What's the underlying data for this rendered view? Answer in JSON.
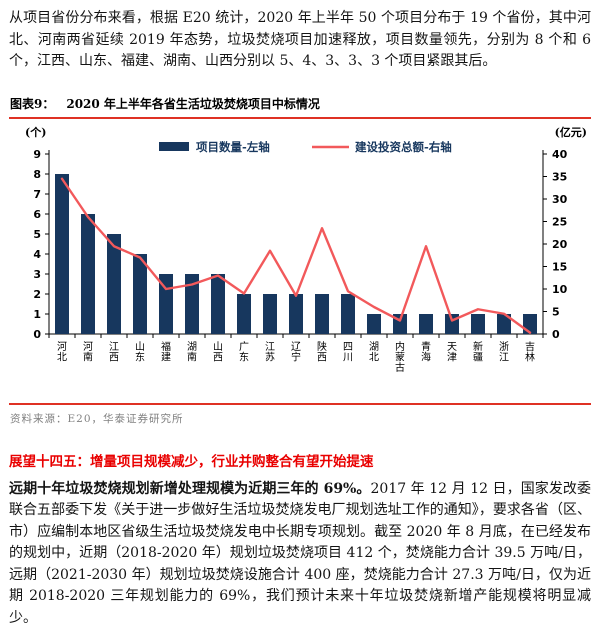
{
  "intro": {
    "text": "从项目省份分布来看，根据 E20 统计，2020 年上半年 50 个项目分布于 19 个省份，其中河北、河南两省延续 2019 年态势，垃圾焚烧项目加速释放，项目数量领先，分别为 8 个和 6 个，江西、山东、福建、湖南、山西分别以 5、4、3、3、3 个项目紧跟其后。"
  },
  "figure": {
    "label": "图表9：",
    "title": "2020 年上半年各省生活垃圾焚烧项目中标情况",
    "source": "资料来源：E20，华泰证券研究所"
  },
  "chart_data": {
    "type": "bar+line",
    "categories": [
      "河北",
      "河南",
      "江西",
      "山东",
      "福建",
      "湖南",
      "山西",
      "广东",
      "江苏",
      "辽宁",
      "陕西",
      "四川",
      "湖北",
      "内蒙古",
      "青海",
      "天津",
      "新疆",
      "浙江",
      "吉林"
    ],
    "series": [
      {
        "name": "项目数量-左轴",
        "type": "bar",
        "axis": "left",
        "color": "#17375E",
        "values": [
          8,
          6,
          5,
          4,
          3,
          3,
          3,
          2,
          2,
          2,
          2,
          2,
          1,
          1,
          1,
          1,
          1,
          1,
          1
        ]
      },
      {
        "name": "建设投资总额-右轴",
        "type": "line",
        "axis": "right",
        "color": "#F2595B",
        "values": [
          34.5,
          26,
          19.5,
          17,
          10,
          11,
          13,
          9,
          18.5,
          8.5,
          23.5,
          9.5,
          6,
          3,
          19.5,
          3,
          5.5,
          4.5,
          0.3
        ]
      }
    ],
    "left_axis": {
      "label": "(个)",
      "min": 0,
      "max": 9,
      "step": 1
    },
    "right_axis": {
      "label": "(亿元)",
      "min": 0,
      "max": 40,
      "step": 5
    },
    "legend_position": "top",
    "grid": false
  },
  "outlook": {
    "heading": "展望十四五：增量项目规模减少，行业并购整合有望开始提速",
    "lead": "远期十年垃圾焚烧规划新增处理规模为近期三年的 69%。",
    "body": "2017 年 12 月 12 日，国家发改委联合五部委下发《关于进一步做好生活垃圾焚烧发电厂规划选址工作的通知》，要求各省（区、市）应编制本地区省级生活垃圾焚烧发电中长期专项规划。截至 2020 年 8 月底，在已经发布的规划中，近期（2018-2020 年）规划垃圾焚烧项目 412 个，焚烧能力合计 39.5 万吨/日，远期（2021-2030 年）规划垃圾焚烧设施合计 400 座，焚烧能力合计 27.3 万吨/日，仅为近期 2018-2020 三年规划能力的 69%，我们预计未来十年垃圾焚烧新增产能规模将明显减少。"
  },
  "colors": {
    "bar_navy": "#17375E",
    "line_red": "#F2595B",
    "rule_red": "#DF3124",
    "heading_red": "#E90000",
    "source_gray": "#818181",
    "legend_text_navy": "#17375E",
    "axis_text": "#000000"
  }
}
